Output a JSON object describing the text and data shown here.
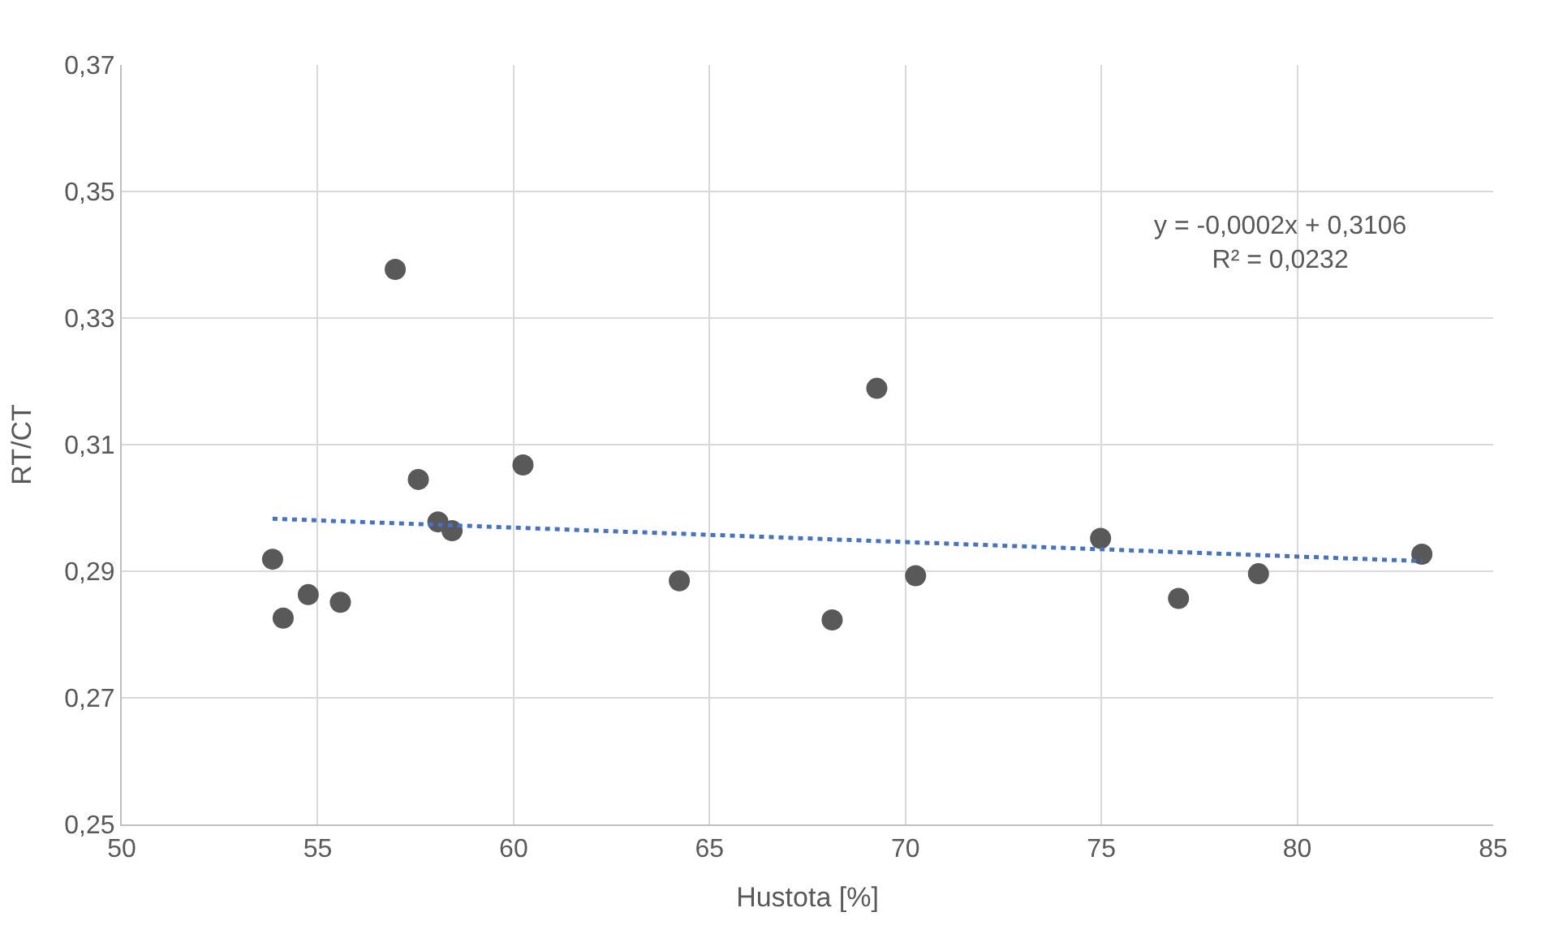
{
  "chart_data": {
    "type": "scatter",
    "xlabel": "Hustota [%]",
    "ylabel": "RT/CT",
    "xlim": [
      50,
      85
    ],
    "xticks": [
      50,
      55,
      60,
      65,
      70,
      75,
      80,
      85
    ],
    "ylim": [
      0.25,
      0.37
    ],
    "yticks": [
      {
        "value": 0.25,
        "label": "0,25"
      },
      {
        "value": 0.27,
        "label": "0,27"
      },
      {
        "value": 0.29,
        "label": "0,29"
      },
      {
        "value": 0.31,
        "label": "0,31"
      },
      {
        "value": 0.33,
        "label": "0,33"
      },
      {
        "value": 0.35,
        "label": "0,35"
      },
      {
        "value": 0.37,
        "label": "0,37"
      }
    ],
    "grid": true,
    "marker": "circle",
    "series": [
      {
        "color": "#595959",
        "x": [
          53.85,
          54.12,
          54.76,
          55.58,
          56.98,
          57.57,
          58.07,
          58.43,
          60.24,
          64.23,
          68.13,
          69.27,
          70.26,
          74.98,
          76.97,
          79.01,
          83.18
        ],
        "values": [
          0.2919,
          0.2826,
          0.2863,
          0.2851,
          0.3377,
          0.3045,
          0.2978,
          0.2964,
          0.3068,
          0.2885,
          0.2823,
          0.3189,
          0.2893,
          0.2952,
          0.2857,
          0.2896,
          0.2927
        ]
      },
      {
        "type": "line",
        "color": "#4472c4",
        "line_style": "dotted",
        "marker": "none",
        "x": [
          53.85,
          83.18
        ],
        "values": [
          0.2983,
          0.2916
        ]
      }
    ],
    "annotations": [
      "y = -0,0002x + 0,3106",
      "R² = 0,0232"
    ]
  }
}
